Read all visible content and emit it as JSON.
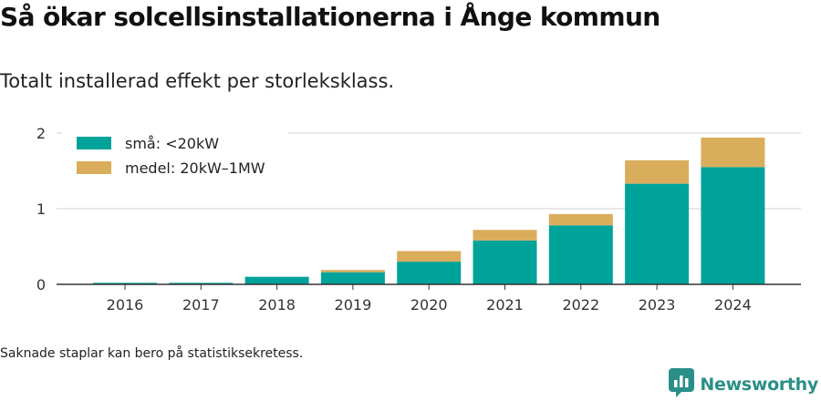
{
  "header": {
    "title": "Så ökar solcellsinstallationerna i Ånge kommun",
    "subtitle": "Totalt installerad effekt per storleksklass."
  },
  "footnote": "Saknade staplar kan bero på statistiksekretess.",
  "brand": {
    "name": "Newsworthy",
    "icon": "newsworthy-logo-icon",
    "color": "#2a8f88"
  },
  "chart_data": {
    "type": "bar",
    "stacked": true,
    "categories": [
      "2016",
      "2017",
      "2018",
      "2019",
      "2020",
      "2021",
      "2022",
      "2023",
      "2024"
    ],
    "series": [
      {
        "name": "små: <20kW",
        "color": "#00a39a",
        "values": [
          0.02,
          0.02,
          0.1,
          0.16,
          0.3,
          0.58,
          0.78,
          1.33,
          1.55
        ]
      },
      {
        "name": "medel: 20kW–1MW",
        "color": "#d9ad5c",
        "values": [
          0,
          0,
          0,
          0.03,
          0.14,
          0.14,
          0.15,
          0.31,
          0.39
        ]
      }
    ],
    "y_ticks": [
      0,
      1,
      2
    ],
    "ylim": [
      0,
      2.05
    ],
    "grid": true,
    "legend_position": "top-left"
  }
}
